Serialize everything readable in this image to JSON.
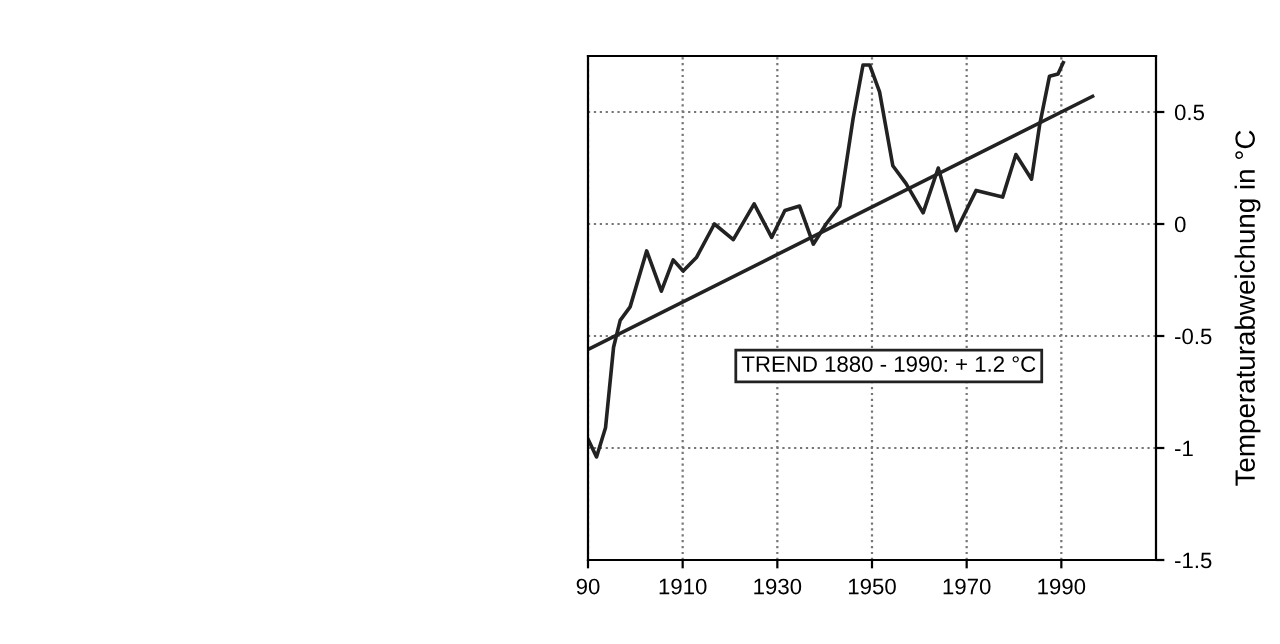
{
  "chart_data": {
    "type": "line",
    "ylabel": "Temperaturabweichung in °C",
    "annotations": [
      "TREND 1880 - 1990: + 1.2 °C"
    ],
    "xlim": [
      1890,
      2010
    ],
    "xticks": [
      {
        "value": 1890,
        "label": "90"
      },
      1910,
      1930,
      1950,
      1970,
      1990
    ],
    "ylim": [
      -1.5,
      0.75
    ],
    "yticks": [
      -1.5,
      -1,
      -0.5,
      0,
      0.5
    ],
    "grid": true,
    "marker": "none",
    "line_style": "solid",
    "legend": false,
    "series": [
      {
        "color": "#222222",
        "x": [
          1890,
          1891.8,
          1893.7,
          1895.4,
          1896.8,
          1898.9,
          1902.4,
          1905.5,
          1908,
          1910.1,
          1912.9,
          1916.7,
          1920.7,
          1925.1,
          1928.8,
          1931.6,
          1934.7,
          1937.6,
          1940.3,
          1943.2,
          1946,
          1948.1,
          1949.5,
          1951.6,
          1954.4,
          1957.2,
          1960.8,
          1964,
          1967.8,
          1972,
          1977.6,
          1980.4,
          1983.7,
          1985.4,
          1987.5,
          1989.3,
          1990.4
        ],
        "values": [
          -0.96,
          -1.04,
          -0.91,
          -0.55,
          -0.43,
          -0.37,
          -0.12,
          -0.3,
          -0.16,
          -0.21,
          -0.15,
          0.0,
          -0.07,
          0.09,
          -0.06,
          0.06,
          0.08,
          -0.09,
          0.0,
          0.08,
          0.47,
          0.71,
          0.71,
          0.59,
          0.26,
          0.18,
          0.05,
          0.25,
          -0.03,
          0.15,
          0.12,
          0.31,
          0.2,
          0.44,
          0.66,
          0.67,
          0.72
        ]
      },
      {
        "type": "line",
        "color": "#222222",
        "x": [
          1890,
          1996.6
        ],
        "values": [
          -0.56,
          0.57
        ]
      }
    ]
  }
}
